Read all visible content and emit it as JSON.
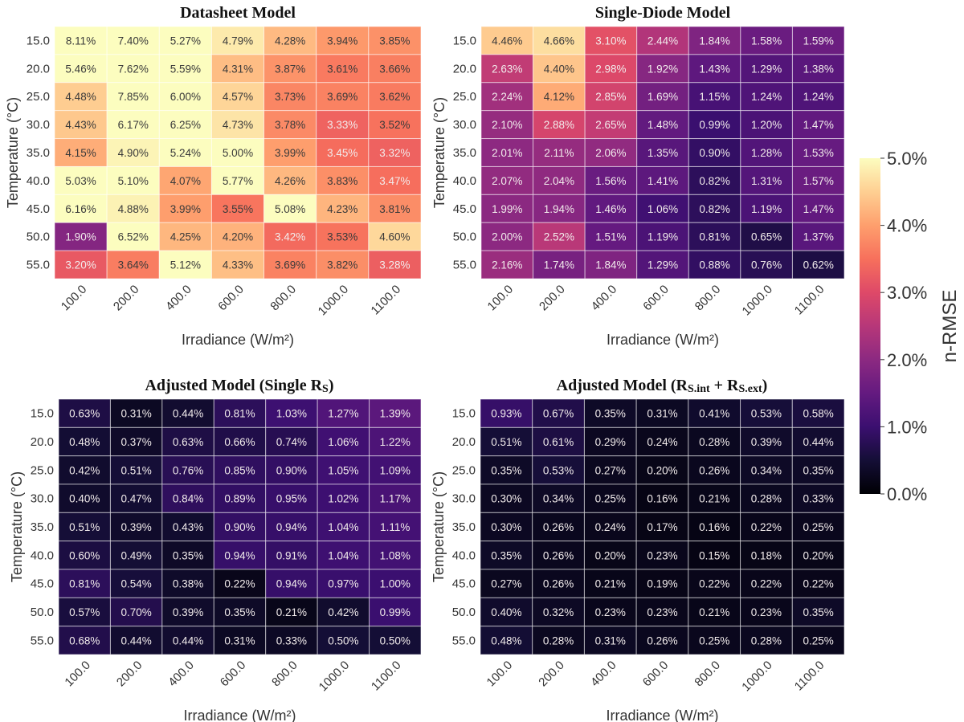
{
  "chart_data": {
    "type": "heatmap",
    "colormap": "magma",
    "value_unit": "%",
    "vmin": 0.0,
    "vmax": 5.0,
    "colorbar": {
      "label": "n-RMSE",
      "ticks": [
        "0.0%",
        "1.0%",
        "2.0%",
        "3.0%",
        "4.0%",
        "5.0%"
      ],
      "tick_values": [
        0,
        1,
        2,
        3,
        4,
        5
      ],
      "placement": "right"
    },
    "panels": [
      {
        "title": "Datasheet Model",
        "xlabel": "Irradiance (W/m²)",
        "ylabel": "Temperature (°C)",
        "x": [
          "100.0",
          "200.0",
          "400.0",
          "600.0",
          "800.0",
          "1000.0",
          "1100.0"
        ],
        "y": [
          "15.0",
          "20.0",
          "25.0",
          "30.0",
          "35.0",
          "40.0",
          "45.0",
          "50.0",
          "55.0"
        ],
        "values": [
          [
            8.11,
            7.4,
            5.27,
            4.79,
            4.28,
            3.94,
            3.85
          ],
          [
            5.46,
            7.62,
            5.59,
            4.31,
            3.87,
            3.61,
            3.66
          ],
          [
            4.48,
            7.85,
            6.0,
            4.57,
            3.73,
            3.69,
            3.62
          ],
          [
            4.43,
            6.17,
            6.25,
            4.73,
            3.78,
            3.33,
            3.52
          ],
          [
            4.15,
            4.9,
            5.24,
            5.0,
            3.99,
            3.45,
            3.32
          ],
          [
            5.03,
            5.1,
            4.07,
            5.77,
            4.26,
            3.83,
            3.47
          ],
          [
            6.16,
            4.88,
            3.99,
            3.55,
            5.08,
            4.23,
            3.81
          ],
          [
            1.9,
            6.52,
            4.25,
            4.2,
            3.42,
            3.53,
            4.6
          ],
          [
            3.2,
            3.64,
            5.12,
            4.33,
            3.69,
            3.82,
            3.28
          ]
        ]
      },
      {
        "title": "Single-Diode Model",
        "xlabel": "Irradiance (W/m²)",
        "ylabel": "Temperature (°C)",
        "x": [
          "100.0",
          "200.0",
          "400.0",
          "600.0",
          "800.0",
          "1000.0",
          "1100.0"
        ],
        "y": [
          "15.0",
          "20.0",
          "25.0",
          "30.0",
          "35.0",
          "40.0",
          "45.0",
          "50.0",
          "55.0"
        ],
        "values": [
          [
            4.46,
            4.66,
            3.1,
            2.44,
            1.84,
            1.58,
            1.59
          ],
          [
            2.63,
            4.4,
            2.98,
            1.92,
            1.43,
            1.29,
            1.38
          ],
          [
            2.24,
            4.12,
            2.85,
            1.69,
            1.15,
            1.24,
            1.24
          ],
          [
            2.1,
            2.88,
            2.65,
            1.48,
            0.99,
            1.2,
            1.47
          ],
          [
            2.01,
            2.11,
            2.06,
            1.35,
            0.9,
            1.28,
            1.53
          ],
          [
            2.07,
            2.04,
            1.56,
            1.41,
            0.82,
            1.31,
            1.57
          ],
          [
            1.99,
            1.94,
            1.46,
            1.06,
            0.82,
            1.19,
            1.47
          ],
          [
            2.0,
            2.52,
            1.51,
            1.19,
            0.81,
            0.65,
            1.37
          ],
          [
            2.16,
            1.74,
            1.84,
            1.29,
            0.88,
            0.76,
            0.62
          ]
        ]
      },
      {
        "title": "Adjusted Model (Single R",
        "title_sub": "S",
        "title_end": ")",
        "xlabel": "Irradiance (W/m²)",
        "ylabel": "Temperature (°C)",
        "x": [
          "100.0",
          "200.0",
          "400.0",
          "600.0",
          "800.0",
          "1000.0",
          "1100.0"
        ],
        "y": [
          "15.0",
          "20.0",
          "25.0",
          "30.0",
          "35.0",
          "40.0",
          "45.0",
          "50.0",
          "55.0"
        ],
        "values": [
          [
            0.63,
            0.31,
            0.44,
            0.81,
            1.03,
            1.27,
            1.39
          ],
          [
            0.48,
            0.37,
            0.63,
            0.66,
            0.74,
            1.06,
            1.22
          ],
          [
            0.42,
            0.51,
            0.76,
            0.85,
            0.9,
            1.05,
            1.09
          ],
          [
            0.4,
            0.47,
            0.84,
            0.89,
            0.95,
            1.02,
            1.17
          ],
          [
            0.51,
            0.39,
            0.43,
            0.9,
            0.94,
            1.04,
            1.11
          ],
          [
            0.6,
            0.49,
            0.35,
            0.94,
            0.91,
            1.04,
            1.08
          ],
          [
            0.81,
            0.54,
            0.38,
            0.22,
            0.94,
            0.97,
            1.0
          ],
          [
            0.57,
            0.7,
            0.39,
            0.35,
            0.21,
            0.42,
            0.99
          ],
          [
            0.68,
            0.44,
            0.44,
            0.31,
            0.33,
            0.5,
            0.5
          ]
        ]
      },
      {
        "title": "Adjusted Model (R",
        "title_sub": "S.int",
        "title_mid": " + R",
        "title_sub2": "S.ext",
        "title_end": ")",
        "xlabel": "Irradiance (W/m²)",
        "ylabel": "Temperature (°C)",
        "x": [
          "100.0",
          "200.0",
          "400.0",
          "600.0",
          "800.0",
          "1000.0",
          "1100.0"
        ],
        "y": [
          "15.0",
          "20.0",
          "25.0",
          "30.0",
          "35.0",
          "40.0",
          "45.0",
          "50.0",
          "55.0"
        ],
        "values": [
          [
            0.93,
            0.67,
            0.35,
            0.31,
            0.41,
            0.53,
            0.58
          ],
          [
            0.51,
            0.61,
            0.29,
            0.24,
            0.28,
            0.39,
            0.44
          ],
          [
            0.35,
            0.53,
            0.27,
            0.2,
            0.26,
            0.34,
            0.35
          ],
          [
            0.3,
            0.34,
            0.25,
            0.16,
            0.21,
            0.28,
            0.33
          ],
          [
            0.3,
            0.26,
            0.24,
            0.17,
            0.16,
            0.22,
            0.25
          ],
          [
            0.35,
            0.26,
            0.2,
            0.23,
            0.15,
            0.18,
            0.2
          ],
          [
            0.27,
            0.26,
            0.21,
            0.19,
            0.22,
            0.22,
            0.22
          ],
          [
            0.4,
            0.32,
            0.23,
            0.23,
            0.21,
            0.23,
            0.35
          ],
          [
            0.48,
            0.28,
            0.31,
            0.26,
            0.25,
            0.28,
            0.25
          ]
        ]
      }
    ]
  }
}
